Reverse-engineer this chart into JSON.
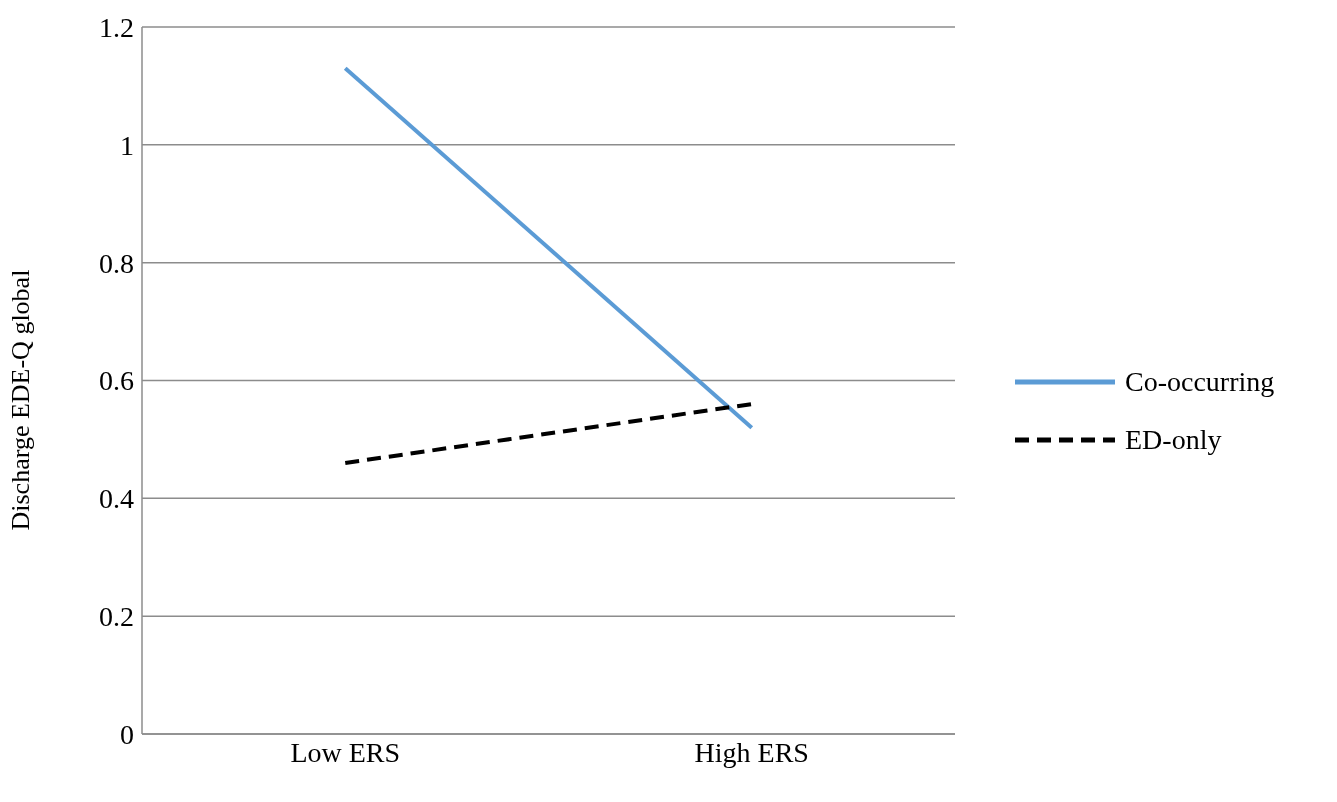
{
  "chart_data": {
    "type": "line",
    "ylabel": "Discharge EDE-Q global",
    "categories": [
      "Low ERS",
      "High ERS"
    ],
    "series": [
      {
        "name": "Co-occurring",
        "color": "#5b9bd5",
        "values": [
          1.13,
          0.52
        ],
        "line_style": "solid"
      },
      {
        "name": "ED-only",
        "color": "#000000",
        "values": [
          0.46,
          0.56
        ],
        "line_style": "dashed"
      }
    ],
    "ylim": [
      0,
      1.2
    ],
    "yticks": [
      0,
      0.2,
      0.4,
      0.6,
      0.8,
      1,
      1.2
    ],
    "grid": "y",
    "legend": "right",
    "marker": "none"
  }
}
